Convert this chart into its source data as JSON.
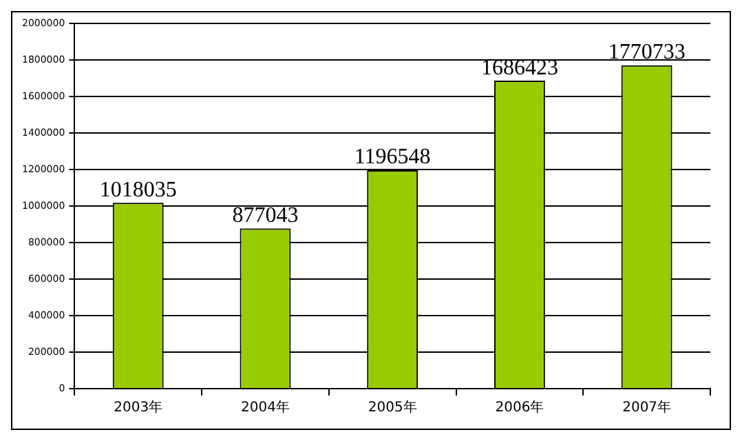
{
  "chart_data": {
    "type": "bar",
    "categories": [
      "2003年",
      "2004年",
      "2005年",
      "2006年",
      "2007年"
    ],
    "values": [
      1018035,
      877043,
      1196548,
      1686423,
      1770733
    ],
    "color": "#99cc00",
    "ylim": [
      0,
      2000000
    ],
    "yticks": [
      0,
      200000,
      400000,
      600000,
      800000,
      1000000,
      1200000,
      1400000,
      1600000,
      1800000,
      2000000
    ],
    "grid": "y",
    "legend": false,
    "data_labels": true
  }
}
